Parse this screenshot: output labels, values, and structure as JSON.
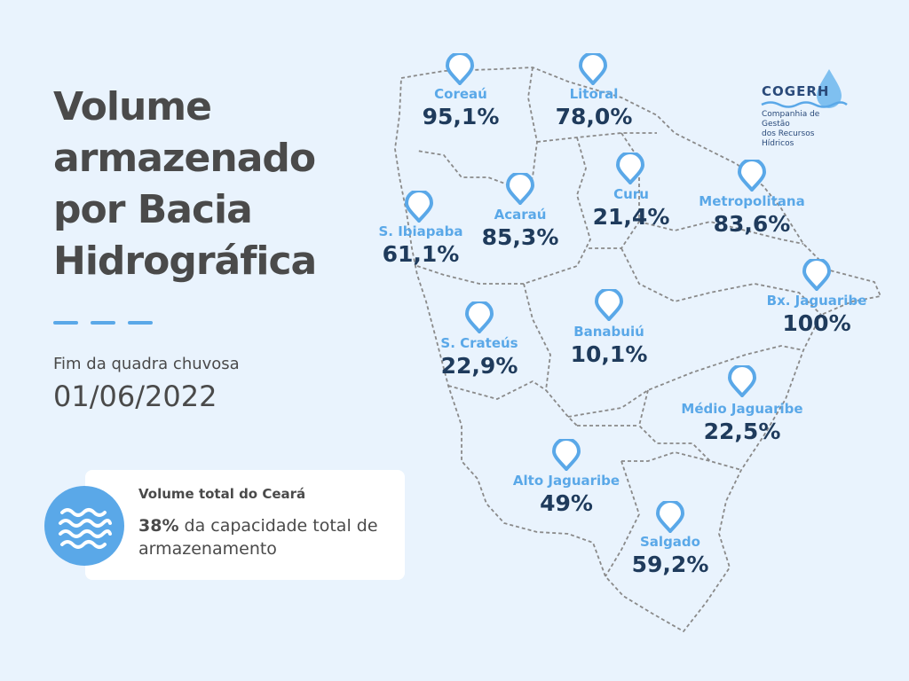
{
  "title": "Volume armazenado por Bacia Hidrográfica",
  "subtitle": "Fim da quadra chuvosa",
  "date": "01/06/2022",
  "summary": {
    "title": "Volume total do Ceará",
    "value": "38%",
    "text": " da capacidade total de armazenamento",
    "icon": "water-waves-icon"
  },
  "logo": {
    "name": "COGERH",
    "line1": "Companhia de Gestão",
    "line2": "dos Recursos Hídricos"
  },
  "colors": {
    "background": "#e9f3fd",
    "accent": "#5aa8e8",
    "value": "#1f3b5c",
    "text": "#4a4a4a"
  },
  "basins": [
    {
      "name": "Coreaú",
      "value": "95,1%"
    },
    {
      "name": "Litoral",
      "value": "78,0%"
    },
    {
      "name": "Curu",
      "value": "21,4%"
    },
    {
      "name": "Metropolitana",
      "value": "83,6%"
    },
    {
      "name": "Acaraú",
      "value": "85,3%"
    },
    {
      "name": "S. Ibiapaba",
      "value": "61,1%"
    },
    {
      "name": "Bx. Jaguaribe",
      "value": "100%"
    },
    {
      "name": "S. Crateús",
      "value": "22,9%"
    },
    {
      "name": "Banabuiú",
      "value": "10,1%"
    },
    {
      "name": "Médio Jaguaribe",
      "value": "22,5%"
    },
    {
      "name": "Alto Jaguaribe",
      "value": "49%"
    },
    {
      "name": "Salgado",
      "value": "59,2%"
    }
  ]
}
